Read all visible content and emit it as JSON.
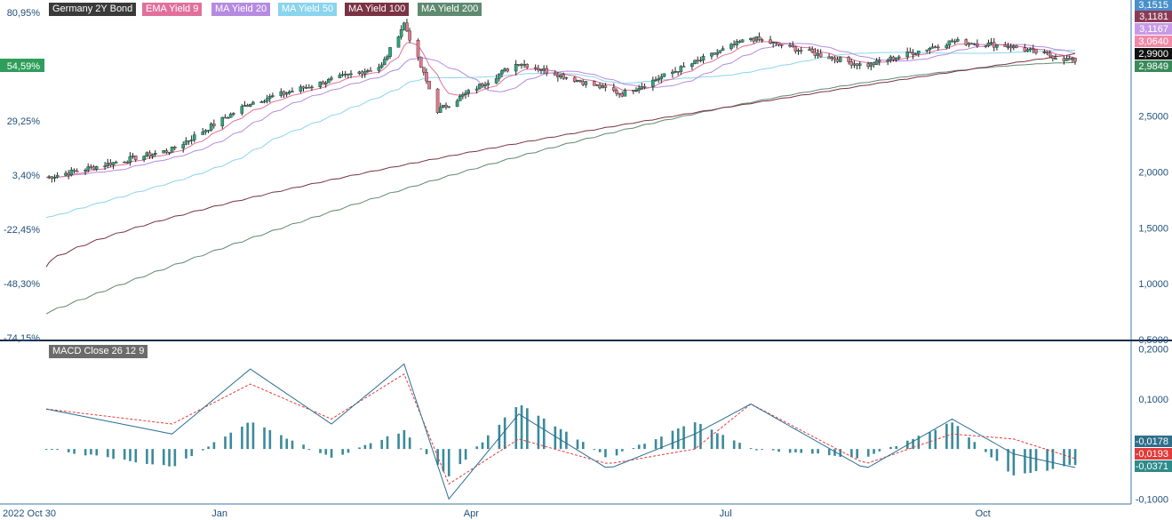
{
  "chart_data": [
    {
      "type": "candlestick",
      "legend": [
        {
          "label": "Germany 2Y Bond",
          "color": "#3a3a3a"
        },
        {
          "label": "EMA Yield 9",
          "color": "#e0709a"
        },
        {
          "label": "MA Yield 20",
          "color": "#b58be0"
        },
        {
          "label": "MA Yield 50",
          "color": "#8ad4ee"
        },
        {
          "label": "MA Yield 100",
          "color": "#7a3344"
        },
        {
          "label": "MA Yield 200",
          "color": "#5f8a70"
        }
      ],
      "left_axis_ticks": [
        "80,95%",
        "54,59%",
        "29,25%",
        "3,40%",
        "-22,45%",
        "-48,30%",
        "-74,15%"
      ],
      "left_axis_highlight": {
        "label": "54,59%",
        "color": "#2e9e5a"
      },
      "right_axis_ticks": [
        "2,5000",
        "2,0000",
        "1,5000",
        "1,0000",
        "0,5000"
      ],
      "ylim": [
        0.5,
        3.5
      ],
      "x_labels": [
        "2022 Oct 30",
        "Jan",
        "Apr",
        "Jul",
        "Oct"
      ],
      "price_badges": [
        {
          "label": "3,1515",
          "color": "#4a8fc9"
        },
        {
          "label": "3,1181",
          "color": "#8b3a55"
        },
        {
          "label": "3,1167",
          "color": "#c79ae8"
        },
        {
          "label": "3,0640",
          "color": "#f08aa6"
        },
        {
          "label": "2,9900",
          "color": "#111111"
        },
        {
          "label": "2,9849",
          "color": "#3a8a5a"
        }
      ],
      "key_points": {
        "dates": [
          "2022-10-31",
          "2022-12-15",
          "2023-01-12",
          "2023-02-28",
          "2023-03-08",
          "2023-03-20",
          "2023-04-18",
          "2023-05-25",
          "2023-06-20",
          "2023-07-10",
          "2023-08-20",
          "2023-09-20",
          "2023-10-10",
          "2023-11-03"
        ],
        "close": [
          1.95,
          2.2,
          2.62,
          2.95,
          3.33,
          2.55,
          2.98,
          2.7,
          2.98,
          3.2,
          2.95,
          3.17,
          3.13,
          2.99
        ]
      },
      "ma200_range": [
        0.73,
        2.98
      ],
      "ma100_range": [
        1.15,
        3.06
      ]
    },
    {
      "type": "line+bar",
      "label": "MACD Close 26 12 9",
      "right_axis_ticks": [
        "0,2000",
        "0,1000",
        "-0,1000"
      ],
      "ylim": [
        -0.11,
        0.21
      ],
      "macd_badges": [
        {
          "label": "-0,0178",
          "color": "#2f6f8a"
        },
        {
          "label": "-0,0193",
          "color": "#e23b3b"
        },
        {
          "label": "-0,0371",
          "color": "#2f8a8a"
        }
      ],
      "key_points": {
        "dates": [
          "2022-10-31",
          "2022-12-15",
          "2023-01-12",
          "2023-02-10",
          "2023-03-08",
          "2023-03-24",
          "2023-04-18",
          "2023-05-20",
          "2023-06-20",
          "2023-07-10",
          "2023-08-20",
          "2023-09-20",
          "2023-10-12",
          "2023-11-03"
        ],
        "macd": [
          0.08,
          0.03,
          0.16,
          0.05,
          0.17,
          -0.1,
          0.07,
          -0.04,
          0.03,
          0.09,
          -0.04,
          0.06,
          -0.01,
          -0.037
        ],
        "signal": [
          0.08,
          0.05,
          0.13,
          0.06,
          0.15,
          -0.07,
          0.02,
          -0.03,
          0.0,
          0.09,
          -0.03,
          0.03,
          0.02,
          -0.0193
        ],
        "histogram_last": -0.0178
      }
    }
  ]
}
